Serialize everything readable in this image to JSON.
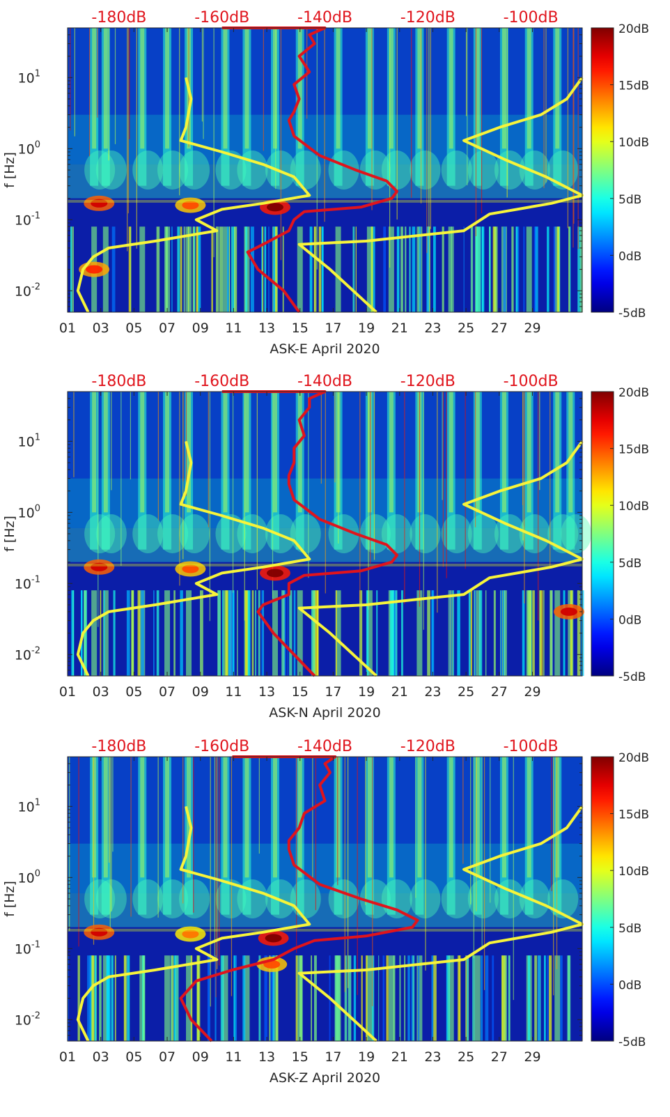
{
  "chart_data": [
    {
      "type": "heatmap",
      "xlabel": "ASK-E April 2020",
      "ylabel": "f [Hz]",
      "yscale": "log",
      "ylim": [
        0.005,
        50
      ],
      "xlim": [
        1,
        32
      ],
      "x_ticks": [
        "01",
        "03",
        "05",
        "07",
        "09",
        "11",
        "13",
        "15",
        "17",
        "19",
        "21",
        "23",
        "25",
        "27",
        "29"
      ],
      "y_ticks": [
        {
          "base": "10",
          "exp": "-2"
        },
        {
          "base": "10",
          "exp": "-1"
        },
        {
          "base": "10",
          "exp": "0"
        },
        {
          "base": "10",
          "exp": "1"
        }
      ],
      "top_axis_labels": [
        "-180dB",
        "-160dB",
        "-140dB",
        "-120dB",
        "-100dB"
      ],
      "top_axis_range_db": [
        -190,
        -90
      ],
      "colorbar": {
        "ticks": [
          "20dB",
          "15dB",
          "10dB",
          "5dB",
          "0dB",
          "-5dB"
        ],
        "range_db": [
          -5,
          20
        ]
      },
      "colors": {
        "red_curve": "#e0141c",
        "yellow_curves": "#f7f43a",
        "top_axis_text": "#e0141c"
      },
      "daily_bursts_at_day": [
        2.6,
        3.3,
        5.5,
        7.0,
        8.3,
        10.5,
        11.8,
        13.5,
        15.0,
        17.3,
        19.2,
        20.5,
        22.2,
        24.1,
        25.7,
        27.3,
        28.8,
        30.5
      ],
      "hotspots": [
        {
          "day": 2.9,
          "f": 0.17,
          "level_db": 18
        },
        {
          "day": 8.4,
          "f": 0.16,
          "level_db": 15
        },
        {
          "day": 13.5,
          "f": 0.15,
          "level_db": 20
        },
        {
          "day": 2.6,
          "f": 0.02,
          "level_db": 16
        }
      ],
      "series": [
        {
          "curve": "red",
          "points": [
            [
              -160,
              50
            ],
            [
              -140,
              50
            ],
            [
              -143,
              40
            ],
            [
              -142,
              30
            ],
            [
              -145,
              20
            ],
            [
              -143,
              12
            ],
            [
              -146,
              8
            ],
            [
              -145,
              5
            ],
            [
              -146,
              3.3
            ],
            [
              -147,
              2.5
            ],
            [
              -146,
              1.5
            ],
            [
              -141,
              0.8
            ],
            [
              -134,
              0.5
            ],
            [
              -128,
              0.35
            ],
            [
              -126,
              0.25
            ],
            [
              -127,
              0.2
            ],
            [
              -133,
              0.15
            ],
            [
              -144,
              0.13
            ],
            [
              -146,
              0.1
            ],
            [
              -147,
              0.07
            ],
            [
              -152,
              0.045
            ],
            [
              -155,
              0.035
            ],
            [
              -153,
              0.02
            ],
            [
              -148,
              0.01
            ],
            [
              -145,
              0.005
            ]
          ]
        },
        {
          "curve": "yellow_noise_model_low",
          "points": [
            [
              -167,
              10
            ],
            [
              -166,
              5
            ],
            [
              -167,
              2
            ],
            [
              -168,
              1.3
            ],
            [
              -160,
              0.9
            ],
            [
              -152,
              0.6
            ],
            [
              -146,
              0.4
            ],
            [
              -143,
              0.22
            ],
            [
              -152,
              0.17
            ],
            [
              -160,
              0.14
            ],
            [
              -165,
              0.1
            ],
            [
              -161,
              0.07
            ],
            [
              -173,
              0.05
            ],
            [
              -182,
              0.04
            ],
            [
              -185,
              0.03
            ],
            [
              -187,
              0.02
            ],
            [
              -188,
              0.01
            ],
            [
              -186,
              0.005
            ]
          ]
        },
        {
          "curve": "yellow_noise_model_high",
          "points": [
            [
              -88,
              10
            ],
            [
              -93,
              5
            ],
            [
              -98,
              3
            ],
            [
              -106,
              2
            ],
            [
              -113,
              1.3
            ],
            [
              -105,
              0.7
            ],
            [
              -97,
              0.4
            ],
            [
              -90,
              0.22
            ],
            [
              -96,
              0.17
            ],
            [
              -108,
              0.12
            ],
            [
              -113,
              0.07
            ],
            [
              -132,
              0.05
            ],
            [
              -145,
              0.045
            ],
            [
              -139,
              0.02
            ],
            [
              -130,
              0.005
            ]
          ]
        }
      ]
    },
    {
      "type": "heatmap",
      "xlabel": "ASK-N April 2020",
      "ylabel": "f [Hz]",
      "yscale": "log",
      "ylim": [
        0.005,
        50
      ],
      "xlim": [
        1,
        32
      ],
      "x_ticks": [
        "01",
        "03",
        "05",
        "07",
        "09",
        "11",
        "13",
        "15",
        "17",
        "19",
        "21",
        "23",
        "25",
        "27",
        "29"
      ],
      "y_ticks": [
        {
          "base": "10",
          "exp": "-2"
        },
        {
          "base": "10",
          "exp": "-1"
        },
        {
          "base": "10",
          "exp": "0"
        },
        {
          "base": "10",
          "exp": "1"
        }
      ],
      "top_axis_labels": [
        "-180dB",
        "-160dB",
        "-140dB",
        "-120dB",
        "-100dB"
      ],
      "top_axis_range_db": [
        -190,
        -90
      ],
      "colorbar": {
        "ticks": [
          "20dB",
          "15dB",
          "10dB",
          "5dB",
          "0dB",
          "-5dB"
        ],
        "range_db": [
          -5,
          20
        ]
      },
      "colors": {
        "red_curve": "#e0141c",
        "yellow_curves": "#f7f43a",
        "top_axis_text": "#e0141c"
      },
      "daily_bursts_at_day": [
        2.6,
        3.3,
        5.5,
        7.0,
        8.3,
        10.5,
        11.8,
        13.5,
        15.0,
        17.3,
        19.2,
        20.5,
        22.2,
        24.1,
        25.7,
        27.3,
        28.8,
        30.5,
        31.3
      ],
      "hotspots": [
        {
          "day": 2.9,
          "f": 0.17,
          "level_db": 18
        },
        {
          "day": 8.4,
          "f": 0.16,
          "level_db": 15
        },
        {
          "day": 13.5,
          "f": 0.14,
          "level_db": 20
        },
        {
          "day": 31.2,
          "f": 0.04,
          "level_db": 18
        }
      ],
      "series": [
        {
          "curve": "red",
          "points": [
            [
              -160,
              50
            ],
            [
              -140,
              50
            ],
            [
              -143,
              40
            ],
            [
              -143,
              30
            ],
            [
              -145,
              20
            ],
            [
              -144,
              12
            ],
            [
              -146,
              8
            ],
            [
              -146,
              5
            ],
            [
              -147,
              3.3
            ],
            [
              -147,
              2.5
            ],
            [
              -146,
              1.5
            ],
            [
              -141,
              0.8
            ],
            [
              -134,
              0.5
            ],
            [
              -128,
              0.35
            ],
            [
              -126,
              0.25
            ],
            [
              -127,
              0.2
            ],
            [
              -133,
              0.15
            ],
            [
              -144,
              0.13
            ],
            [
              -147,
              0.1
            ],
            [
              -147,
              0.07
            ],
            [
              -152,
              0.05
            ],
            [
              -153,
              0.04
            ],
            [
              -150,
              0.02
            ],
            [
              -146,
              0.01
            ],
            [
              -142,
              0.005
            ]
          ]
        },
        {
          "curve": "yellow_noise_model_low",
          "points": [
            [
              -167,
              10
            ],
            [
              -166,
              5
            ],
            [
              -167,
              2
            ],
            [
              -168,
              1.3
            ],
            [
              -160,
              0.9
            ],
            [
              -152,
              0.6
            ],
            [
              -146,
              0.4
            ],
            [
              -143,
              0.22
            ],
            [
              -152,
              0.17
            ],
            [
              -160,
              0.14
            ],
            [
              -165,
              0.1
            ],
            [
              -161,
              0.07
            ],
            [
              -173,
              0.05
            ],
            [
              -182,
              0.04
            ],
            [
              -185,
              0.03
            ],
            [
              -187,
              0.02
            ],
            [
              -188,
              0.01
            ],
            [
              -186,
              0.005
            ]
          ]
        },
        {
          "curve": "yellow_noise_model_high",
          "points": [
            [
              -88,
              10
            ],
            [
              -93,
              5
            ],
            [
              -98,
              3
            ],
            [
              -106,
              2
            ],
            [
              -113,
              1.3
            ],
            [
              -105,
              0.7
            ],
            [
              -97,
              0.4
            ],
            [
              -90,
              0.22
            ],
            [
              -96,
              0.17
            ],
            [
              -108,
              0.12
            ],
            [
              -113,
              0.07
            ],
            [
              -132,
              0.05
            ],
            [
              -145,
              0.045
            ],
            [
              -139,
              0.02
            ],
            [
              -130,
              0.005
            ]
          ]
        }
      ]
    },
    {
      "type": "heatmap",
      "xlabel": "ASK-Z April 2020",
      "ylabel": "f [Hz]",
      "yscale": "log",
      "ylim": [
        0.005,
        50
      ],
      "xlim": [
        1,
        32
      ],
      "x_ticks": [
        "01",
        "03",
        "05",
        "07",
        "09",
        "11",
        "13",
        "15",
        "17",
        "19",
        "21",
        "23",
        "25",
        "27",
        "29"
      ],
      "y_ticks": [
        {
          "base": "10",
          "exp": "-2"
        },
        {
          "base": "10",
          "exp": "-1"
        },
        {
          "base": "10",
          "exp": "0"
        },
        {
          "base": "10",
          "exp": "1"
        }
      ],
      "top_axis_labels": [
        "-180dB",
        "-160dB",
        "-140dB",
        "-120dB",
        "-100dB"
      ],
      "top_axis_range_db": [
        -190,
        -90
      ],
      "colorbar": {
        "ticks": [
          "20dB",
          "15dB",
          "10dB",
          "5dB",
          "0dB",
          "-5dB"
        ],
        "range_db": [
          -5,
          20
        ]
      },
      "colors": {
        "red_curve": "#e0141c",
        "yellow_curves": "#f7f43a",
        "top_axis_text": "#e0141c"
      },
      "daily_bursts_at_day": [
        2.6,
        3.3,
        5.5,
        7.0,
        8.3,
        10.5,
        11.8,
        13.5,
        15.0,
        17.3,
        19.2,
        20.5,
        22.2,
        24.1,
        25.7,
        27.3,
        28.8,
        30.5
      ],
      "hotspots": [
        {
          "day": 2.9,
          "f": 0.17,
          "level_db": 18
        },
        {
          "day": 8.4,
          "f": 0.16,
          "level_db": 14
        },
        {
          "day": 13.4,
          "f": 0.14,
          "level_db": 20
        },
        {
          "day": 13.3,
          "f": 0.06,
          "level_db": 15
        }
      ],
      "series": [
        {
          "curve": "red",
          "points": [
            [
              -158,
              50
            ],
            [
              -138,
              50
            ],
            [
              -140,
              40
            ],
            [
              -139,
              30
            ],
            [
              -141,
              20
            ],
            [
              -140,
              12
            ],
            [
              -144,
              8
            ],
            [
              -145,
              5
            ],
            [
              -147,
              3.3
            ],
            [
              -147,
              2.5
            ],
            [
              -146,
              1.5
            ],
            [
              -141,
              0.8
            ],
            [
              -133,
              0.5
            ],
            [
              -126,
              0.35
            ],
            [
              -122,
              0.25
            ],
            [
              -123,
              0.2
            ],
            [
              -132,
              0.15
            ],
            [
              -142,
              0.13
            ],
            [
              -146,
              0.1
            ],
            [
              -150,
              0.07
            ],
            [
              -158,
              0.05
            ],
            [
              -165,
              0.035
            ],
            [
              -168,
              0.02
            ],
            [
              -166,
              0.01
            ],
            [
              -162,
              0.005
            ]
          ]
        },
        {
          "curve": "yellow_noise_model_low",
          "points": [
            [
              -167,
              10
            ],
            [
              -166,
              5
            ],
            [
              -167,
              2
            ],
            [
              -168,
              1.3
            ],
            [
              -160,
              0.9
            ],
            [
              -152,
              0.6
            ],
            [
              -146,
              0.4
            ],
            [
              -143,
              0.22
            ],
            [
              -152,
              0.17
            ],
            [
              -160,
              0.14
            ],
            [
              -165,
              0.1
            ],
            [
              -161,
              0.07
            ],
            [
              -173,
              0.05
            ],
            [
              -182,
              0.04
            ],
            [
              -185,
              0.03
            ],
            [
              -187,
              0.02
            ],
            [
              -188,
              0.01
            ],
            [
              -186,
              0.005
            ]
          ]
        },
        {
          "curve": "yellow_noise_model_high",
          "points": [
            [
              -88,
              10
            ],
            [
              -93,
              5
            ],
            [
              -98,
              3
            ],
            [
              -106,
              2
            ],
            [
              -113,
              1.3
            ],
            [
              -105,
              0.7
            ],
            [
              -97,
              0.4
            ],
            [
              -90,
              0.22
            ],
            [
              -96,
              0.17
            ],
            [
              -108,
              0.12
            ],
            [
              -113,
              0.07
            ],
            [
              -132,
              0.05
            ],
            [
              -145,
              0.045
            ],
            [
              -139,
              0.02
            ],
            [
              -130,
              0.005
            ]
          ]
        }
      ]
    }
  ]
}
